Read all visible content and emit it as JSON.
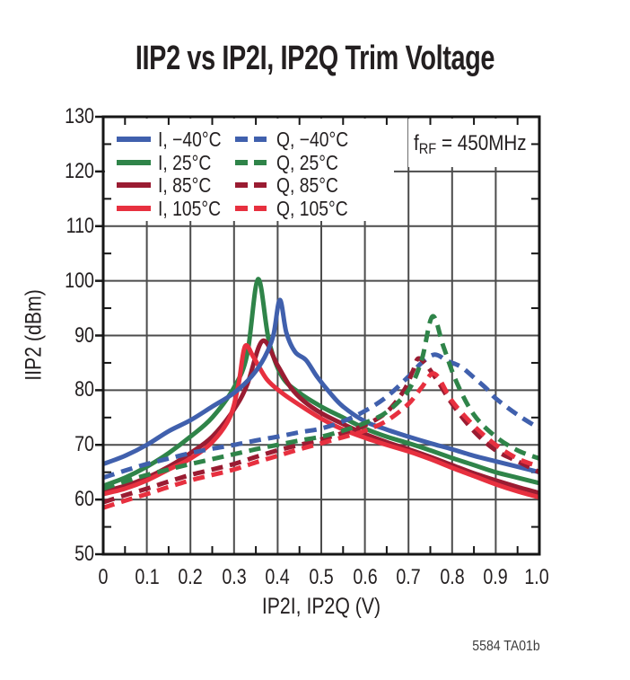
{
  "title": "IIP2 vs IP2I, IP2Q Trim Voltage",
  "annotation": {
    "f": "f",
    "sub": "RF",
    "rest": " = 450MHz"
  },
  "footnote": "5584 TA01b",
  "colors": {
    "blue": "#4060ad",
    "green": "#2f8449",
    "dark_red": "#9a1c32",
    "red": "#e7303f",
    "grid": "#4c4c4c",
    "frame": "#161616",
    "text": "#231f20"
  },
  "chart_data": {
    "type": "line",
    "title": "IIP2 vs IP2I, IP2Q Trim Voltage",
    "xlabel": "IP2I, IP2Q (V)",
    "ylabel": "IIP2 (dBm)",
    "xlim": [
      0,
      1.0
    ],
    "ylim": [
      50,
      130
    ],
    "grid": true,
    "legend_position": "top-left-inside",
    "legend_note": "fRF = 450MHz",
    "x_ticks": [
      0,
      0.1,
      0.2,
      0.3,
      0.4,
      0.5,
      0.6,
      0.7,
      0.8,
      0.9,
      1.0
    ],
    "x_tick_labels": [
      "0",
      "0.1",
      "0.2",
      "0.3",
      "0.4",
      "0.5",
      "0.6",
      "0.7",
      "0.8",
      "0.9",
      "1.0"
    ],
    "y_ticks": [
      50,
      60,
      70,
      80,
      90,
      100,
      110,
      120,
      130
    ],
    "y_tick_labels": [
      "50",
      "60",
      "70",
      "80",
      "90",
      "100",
      "110",
      "120",
      "130"
    ],
    "series": [
      {
        "name": "I-minus40C",
        "label": "I, −40°C",
        "channel": "I",
        "temperature_c": -40,
        "color": "blue",
        "dash": false,
        "points": [
          [
            0,
            66.5
          ],
          [
            0.05,
            68
          ],
          [
            0.1,
            70
          ],
          [
            0.15,
            72.5
          ],
          [
            0.2,
            74.5
          ],
          [
            0.25,
            77
          ],
          [
            0.3,
            79.5
          ],
          [
            0.34,
            82.5
          ],
          [
            0.37,
            86
          ],
          [
            0.39,
            90
          ],
          [
            0.405,
            96.5
          ],
          [
            0.42,
            90.5
          ],
          [
            0.44,
            87
          ],
          [
            0.465,
            85.5
          ],
          [
            0.49,
            82.5
          ],
          [
            0.52,
            79.5
          ],
          [
            0.55,
            77
          ],
          [
            0.6,
            74.3
          ],
          [
            0.65,
            72.8
          ],
          [
            0.7,
            71.5
          ],
          [
            0.75,
            70.3
          ],
          [
            0.8,
            69.2
          ],
          [
            0.85,
            68
          ],
          [
            0.9,
            67
          ],
          [
            0.95,
            66
          ],
          [
            1,
            65
          ]
        ]
      },
      {
        "name": "I-25C",
        "label": "I, 25°C",
        "channel": "I",
        "temperature_c": 25,
        "color": "green",
        "dash": false,
        "points": [
          [
            0,
            62.5
          ],
          [
            0.05,
            64
          ],
          [
            0.1,
            66
          ],
          [
            0.15,
            68.5
          ],
          [
            0.2,
            71.5
          ],
          [
            0.25,
            75
          ],
          [
            0.3,
            80.5
          ],
          [
            0.33,
            86.5
          ],
          [
            0.355,
            100.3
          ],
          [
            0.38,
            89
          ],
          [
            0.41,
            82.5
          ],
          [
            0.45,
            79.5
          ],
          [
            0.5,
            77
          ],
          [
            0.55,
            75
          ],
          [
            0.6,
            73
          ],
          [
            0.65,
            71.5
          ],
          [
            0.7,
            70.3
          ],
          [
            0.75,
            69
          ],
          [
            0.8,
            67.6
          ],
          [
            0.85,
            66.3
          ],
          [
            0.9,
            65
          ],
          [
            0.95,
            64
          ],
          [
            1,
            63
          ]
        ]
      },
      {
        "name": "I-85C",
        "label": "I, 85°C",
        "channel": "I",
        "temperature_c": 85,
        "color": "dark_red",
        "dash": false,
        "points": [
          [
            0,
            61.5
          ],
          [
            0.05,
            62.5
          ],
          [
            0.1,
            64
          ],
          [
            0.15,
            66
          ],
          [
            0.2,
            68.5
          ],
          [
            0.25,
            71.5
          ],
          [
            0.3,
            76.5
          ],
          [
            0.33,
            81
          ],
          [
            0.365,
            89
          ],
          [
            0.4,
            84.5
          ],
          [
            0.43,
            80.5
          ],
          [
            0.46,
            78
          ],
          [
            0.5,
            75.8
          ],
          [
            0.55,
            73.8
          ],
          [
            0.6,
            72
          ],
          [
            0.65,
            70.5
          ],
          [
            0.7,
            69.2
          ],
          [
            0.75,
            67.8
          ],
          [
            0.8,
            66.3
          ],
          [
            0.85,
            64.8
          ],
          [
            0.9,
            63.5
          ],
          [
            0.95,
            62.3
          ],
          [
            1,
            61.2
          ]
        ]
      },
      {
        "name": "I-105C",
        "label": "I, 105°C",
        "channel": "I",
        "temperature_c": 105,
        "color": "red",
        "dash": false,
        "points": [
          [
            0,
            61
          ],
          [
            0.05,
            62
          ],
          [
            0.1,
            63.5
          ],
          [
            0.15,
            65.5
          ],
          [
            0.2,
            67.5
          ],
          [
            0.25,
            70.5
          ],
          [
            0.29,
            75
          ],
          [
            0.31,
            81
          ],
          [
            0.325,
            88
          ],
          [
            0.345,
            86
          ],
          [
            0.375,
            82
          ],
          [
            0.41,
            79.5
          ],
          [
            0.45,
            77.3
          ],
          [
            0.5,
            74.8
          ],
          [
            0.55,
            72.8
          ],
          [
            0.6,
            71.3
          ],
          [
            0.65,
            70
          ],
          [
            0.7,
            68.8
          ],
          [
            0.75,
            67.4
          ],
          [
            0.8,
            65.8
          ],
          [
            0.85,
            64.3
          ],
          [
            0.9,
            62.8
          ],
          [
            0.95,
            61.5
          ],
          [
            1,
            60.4
          ]
        ]
      },
      {
        "name": "Q-minus40C",
        "label": "Q, −40°C",
        "channel": "Q",
        "temperature_c": -40,
        "color": "blue",
        "dash": true,
        "points": [
          [
            0,
            64
          ],
          [
            0.05,
            65.3
          ],
          [
            0.1,
            66.5
          ],
          [
            0.15,
            67.5
          ],
          [
            0.2,
            68.5
          ],
          [
            0.25,
            69.3
          ],
          [
            0.3,
            70
          ],
          [
            0.35,
            70.8
          ],
          [
            0.4,
            71.5
          ],
          [
            0.45,
            72.3
          ],
          [
            0.5,
            73
          ],
          [
            0.55,
            74.3
          ],
          [
            0.6,
            76.2
          ],
          [
            0.65,
            78.8
          ],
          [
            0.7,
            82.5
          ],
          [
            0.73,
            85
          ],
          [
            0.76,
            86.5
          ],
          [
            0.79,
            85.3
          ],
          [
            0.82,
            84.3
          ],
          [
            0.85,
            82.3
          ],
          [
            0.88,
            80.2
          ],
          [
            0.9,
            78.5
          ],
          [
            0.95,
            75.5
          ],
          [
            1,
            73
          ]
        ]
      },
      {
        "name": "Q-25C",
        "label": "Q, 25°C",
        "channel": "Q",
        "temperature_c": 25,
        "color": "green",
        "dash": true,
        "points": [
          [
            0,
            62
          ],
          [
            0.05,
            63.3
          ],
          [
            0.1,
            64.5
          ],
          [
            0.15,
            65.5
          ],
          [
            0.2,
            66.5
          ],
          [
            0.25,
            67.4
          ],
          [
            0.3,
            68.3
          ],
          [
            0.35,
            69.2
          ],
          [
            0.4,
            70
          ],
          [
            0.45,
            70.8
          ],
          [
            0.5,
            71.5
          ],
          [
            0.55,
            72.6
          ],
          [
            0.6,
            74
          ],
          [
            0.65,
            76
          ],
          [
            0.7,
            80
          ],
          [
            0.73,
            85.5
          ],
          [
            0.755,
            93.5
          ],
          [
            0.78,
            88
          ],
          [
            0.81,
            81.5
          ],
          [
            0.85,
            75.5
          ],
          [
            0.9,
            71.5
          ],
          [
            0.95,
            69
          ],
          [
            1,
            67.5
          ]
        ]
      },
      {
        "name": "Q-85C",
        "label": "Q, 85°C",
        "channel": "Q",
        "temperature_c": 85,
        "color": "dark_red",
        "dash": true,
        "points": [
          [
            0,
            59.5
          ],
          [
            0.05,
            60.8
          ],
          [
            0.1,
            62
          ],
          [
            0.15,
            63.3
          ],
          [
            0.2,
            64.5
          ],
          [
            0.25,
            65.5
          ],
          [
            0.3,
            66.5
          ],
          [
            0.35,
            67.8
          ],
          [
            0.4,
            69
          ],
          [
            0.45,
            70
          ],
          [
            0.5,
            71
          ],
          [
            0.55,
            72.2
          ],
          [
            0.6,
            73.6
          ],
          [
            0.65,
            76
          ],
          [
            0.69,
            80
          ],
          [
            0.71,
            83.5
          ],
          [
            0.725,
            85.8
          ],
          [
            0.76,
            82.5
          ],
          [
            0.8,
            77.5
          ],
          [
            0.85,
            72.5
          ],
          [
            0.9,
            69
          ],
          [
            0.95,
            67
          ],
          [
            1,
            65
          ]
        ]
      },
      {
        "name": "Q-105C",
        "label": "Q, 105°C",
        "channel": "Q",
        "temperature_c": 105,
        "color": "red",
        "dash": true,
        "points": [
          [
            0,
            58.5
          ],
          [
            0.05,
            59.8
          ],
          [
            0.1,
            61
          ],
          [
            0.15,
            62.3
          ],
          [
            0.2,
            63.5
          ],
          [
            0.25,
            64.5
          ],
          [
            0.3,
            65.5
          ],
          [
            0.35,
            66.8
          ],
          [
            0.4,
            68
          ],
          [
            0.45,
            69.2
          ],
          [
            0.5,
            70.3
          ],
          [
            0.55,
            71.4
          ],
          [
            0.6,
            72.6
          ],
          [
            0.65,
            74.4
          ],
          [
            0.7,
            77.5
          ],
          [
            0.73,
            80.5
          ],
          [
            0.76,
            83
          ],
          [
            0.8,
            78
          ],
          [
            0.85,
            73.5
          ],
          [
            0.9,
            70
          ],
          [
            0.95,
            67.5
          ],
          [
            1,
            66
          ]
        ]
      }
    ]
  }
}
